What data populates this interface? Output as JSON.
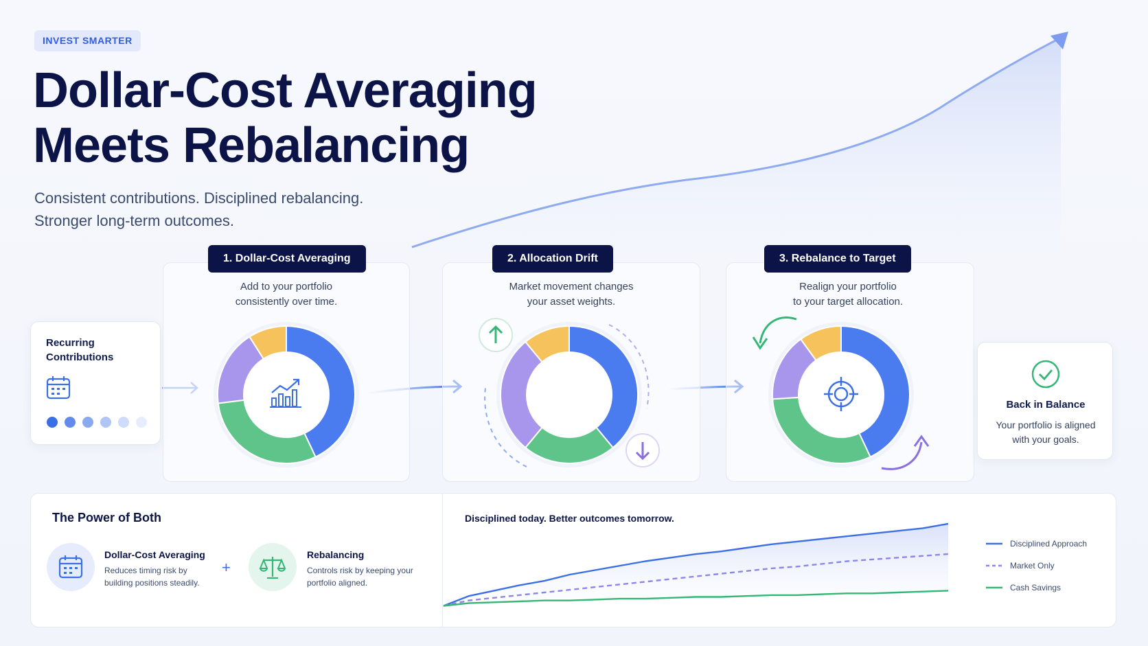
{
  "header": {
    "badge": "INVEST SMARTER",
    "title_line1": "Dollar-Cost Averaging",
    "title_line2": "Meets Rebalancing",
    "subtitle_line1": "Consistent contributions. Disciplined rebalancing.",
    "subtitle_line2": "Stronger long-term outcomes."
  },
  "recurring": {
    "title_line1": "Recurring",
    "title_line2": "Contributions",
    "icon": "calendar-icon"
  },
  "steps": [
    {
      "label": "1. Dollar-Cost Averaging",
      "desc_line1": "Add to your portfolio",
      "desc_line2": "consistently over time.",
      "center_icon": "growth-chart-icon"
    },
    {
      "label": "2. Allocation Drift",
      "desc_line1": "Market movement changes",
      "desc_line2": "your asset weights.",
      "center_icon": "none"
    },
    {
      "label": "3. Rebalance to Target",
      "desc_line1": "Realign your portfolio",
      "desc_line2": "to your target allocation.",
      "center_icon": "target-icon"
    }
  ],
  "balance": {
    "title": "Back in Balance",
    "text_line1": "Your portfolio is aligned",
    "text_line2": "with your goals.",
    "icon": "check-circle-icon"
  },
  "power": {
    "title": "The Power of Both",
    "features": [
      {
        "title": "Dollar-Cost Averaging",
        "text_line1": "Reduces timing risk by",
        "text_line2": "building positions steadily.",
        "icon": "calendar-icon"
      },
      {
        "title": "Rebalancing",
        "text_line1": "Controls risk by keeping your",
        "text_line2": "portfolio aligned.",
        "icon": "scale-icon"
      }
    ],
    "plus": "+"
  },
  "chart": {
    "title": "Disciplined today. Better outcomes tomorrow."
  },
  "chart_data": {
    "type": "line",
    "title": "Disciplined today. Better outcomes tomorrow.",
    "xlabel": "",
    "ylabel": "",
    "x": [
      0,
      1,
      2,
      3,
      4,
      5,
      6,
      7,
      8,
      9,
      10,
      11,
      12,
      13,
      14,
      15,
      16,
      17,
      18,
      19,
      20
    ],
    "ylim": [
      0,
      100
    ],
    "grid": false,
    "legend": "right",
    "series": [
      {
        "name": "Disciplined Approach",
        "color": "#3b6fe6",
        "style": "solid",
        "values": [
          5,
          16,
          22,
          28,
          33,
          40,
          45,
          50,
          55,
          59,
          63,
          66,
          70,
          74,
          77,
          80,
          83,
          86,
          89,
          92,
          97
        ]
      },
      {
        "name": "Market Only",
        "color": "#8d86e8",
        "style": "dashed",
        "values": [
          5,
          11,
          14,
          17,
          20,
          23,
          26,
          29,
          32,
          35,
          38,
          41,
          44,
          47,
          49,
          52,
          55,
          57,
          59,
          61,
          63
        ]
      },
      {
        "name": "Cash Savings",
        "color": "#34b776",
        "style": "solid",
        "values": [
          5,
          8,
          9,
          10,
          11,
          11,
          12,
          13,
          13,
          14,
          15,
          15,
          16,
          17,
          17,
          18,
          19,
          19,
          20,
          21,
          22
        ]
      }
    ]
  },
  "donuts": [
    {
      "name": "step1",
      "segments": [
        {
          "value": 43,
          "color": "#4a7bef"
        },
        {
          "value": 30,
          "color": "#5ec489"
        },
        {
          "value": 18,
          "color": "#a895ec"
        },
        {
          "value": 9,
          "color": "#f5c25b"
        }
      ]
    },
    {
      "name": "step2",
      "segments": [
        {
          "value": 39,
          "color": "#4a7bef"
        },
        {
          "value": 22,
          "color": "#5ec489"
        },
        {
          "value": 28,
          "color": "#a895ec"
        },
        {
          "value": 11,
          "color": "#f5c25b"
        }
      ]
    },
    {
      "name": "step3",
      "segments": [
        {
          "value": 43,
          "color": "#4a7bef"
        },
        {
          "value": 31,
          "color": "#5ec489"
        },
        {
          "value": 16,
          "color": "#a895ec"
        },
        {
          "value": 10,
          "color": "#f5c25b"
        }
      ]
    }
  ],
  "contribution_dots": {
    "levels": [
      1.0,
      0.8,
      0.6,
      0.4,
      0.25,
      0.12
    ],
    "color": "#3b6fe6"
  }
}
